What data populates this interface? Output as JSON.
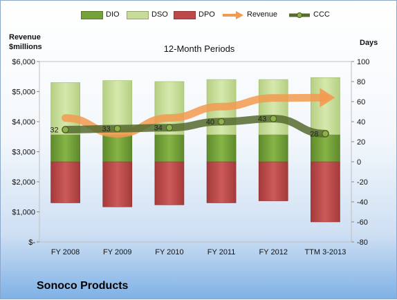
{
  "company": "Sonoco Products",
  "legend": [
    {
      "key": "dio",
      "label": "DIO",
      "color": "#76a03a",
      "type": "bar"
    },
    {
      "key": "dso",
      "label": "DSO",
      "color": "#c6dc98",
      "type": "bar"
    },
    {
      "key": "dpo",
      "label": "DPO",
      "color": "#bd4a4a",
      "type": "bar"
    },
    {
      "key": "revenue",
      "label": "Revenue",
      "color": "#f29a50",
      "type": "arrow"
    },
    {
      "key": "ccc",
      "label": "CCC",
      "color": "#556b2f",
      "type": "line"
    }
  ],
  "left_axis_title": "Revenue\n$millions",
  "right_axis_title": "Days",
  "chart_data": {
    "type": "bar",
    "title": "12-Month Periods",
    "categories": [
      "FY 2008",
      "FY 2009",
      "FY 2010",
      "FY 2011",
      "FY 2012",
      "TTM 3-2013"
    ],
    "series": [
      {
        "name": "DIO",
        "values": [
          27,
          27,
          27,
          27,
          27,
          27
        ],
        "axis": "right",
        "stack": "positive"
      },
      {
        "name": "DSO",
        "values": [
          52,
          54,
          53,
          55,
          55,
          57
        ],
        "axis": "right",
        "stack": "positive"
      },
      {
        "name": "DPO",
        "values": [
          -41,
          -45,
          -43,
          -41,
          -39,
          -60
        ],
        "axis": "right",
        "stack": "negative"
      },
      {
        "name": "Revenue",
        "values": [
          4122,
          3597,
          4124,
          4499,
          4786,
          4800
        ],
        "axis": "left",
        "style": "arrow"
      },
      {
        "name": "CCC",
        "values": [
          32,
          33,
          34,
          40,
          43,
          28
        ],
        "axis": "right",
        "style": "line",
        "labels": [
          "32",
          "33",
          "34",
          "40",
          "43",
          "28"
        ]
      }
    ],
    "left_axis": {
      "ylim": [
        0,
        6000
      ],
      "ticks": [
        "$-",
        "$1,000",
        "$2,000",
        "$3,000",
        "$4,000",
        "$5,000",
        "$6,000"
      ]
    },
    "right_axis": {
      "ylim": [
        -80,
        100
      ],
      "ticks": [
        "-80",
        "-60",
        "-40",
        "-20",
        "0",
        "20",
        "40",
        "60",
        "80",
        "100"
      ]
    },
    "grid": false,
    "legend_position": "top"
  }
}
